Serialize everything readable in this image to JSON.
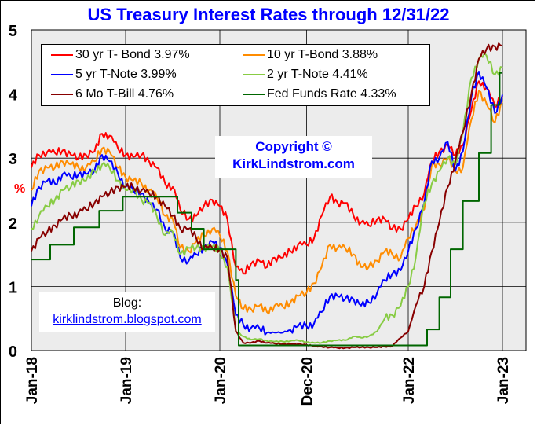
{
  "chart_data": {
    "type": "line",
    "title": "US Treasury Interest Rates through 12/31/22",
    "ylabel": "%",
    "xlabel": "",
    "ylim": [
      0,
      5
    ],
    "yticks": [
      "0",
      "1",
      "2",
      "3",
      "4",
      "5"
    ],
    "xlim": [
      2018.0,
      2023.25
    ],
    "xticks": [
      {
        "label": "Jan-18",
        "value": 2018.0
      },
      {
        "label": "Jan-19",
        "value": 2019.0
      },
      {
        "label": "Jan-20",
        "value": 2020.0
      },
      {
        "label": "Dec-20",
        "value": 2020.92
      },
      {
        "label": "Jan-22",
        "value": 2022.0
      },
      {
        "label": "Jan-23",
        "value": 2023.0
      }
    ],
    "grid": true,
    "legend_position": "top-left",
    "series": [
      {
        "name": "30 yr T- Bond",
        "last": "3.97%",
        "color": "#ff0000",
        "x": [
          2018.0,
          2018.08,
          2018.17,
          2018.25,
          2018.33,
          2018.42,
          2018.5,
          2018.58,
          2018.67,
          2018.75,
          2018.83,
          2018.92,
          2019.0,
          2019.08,
          2019.17,
          2019.25,
          2019.33,
          2019.42,
          2019.5,
          2019.58,
          2019.67,
          2019.75,
          2019.83,
          2019.92,
          2020.0,
          2020.08,
          2020.17,
          2020.25,
          2020.33,
          2020.42,
          2020.5,
          2020.58,
          2020.67,
          2020.75,
          2020.83,
          2020.92,
          2021.0,
          2021.08,
          2021.17,
          2021.25,
          2021.33,
          2021.42,
          2021.5,
          2021.58,
          2021.67,
          2021.75,
          2021.83,
          2021.92,
          2022.0,
          2022.08,
          2022.17,
          2022.25,
          2022.33,
          2022.42,
          2022.5,
          2022.58,
          2022.67,
          2022.75,
          2022.83,
          2022.92,
          2023.0
        ],
        "y": [
          2.85,
          3.05,
          3.1,
          3.08,
          3.12,
          3.05,
          3.0,
          3.05,
          3.1,
          3.38,
          3.35,
          3.15,
          3.05,
          3.02,
          3.05,
          2.95,
          2.85,
          2.6,
          2.55,
          2.2,
          2.05,
          2.1,
          2.25,
          2.35,
          2.25,
          2.05,
          1.3,
          1.2,
          1.35,
          1.4,
          1.3,
          1.45,
          1.45,
          1.55,
          1.65,
          1.65,
          1.75,
          2.1,
          2.4,
          2.3,
          2.3,
          2.1,
          2.0,
          1.95,
          2.05,
          2.05,
          1.9,
          1.9,
          2.05,
          2.25,
          2.45,
          2.95,
          3.1,
          3.2,
          3.05,
          3.2,
          3.75,
          4.2,
          4.1,
          3.8,
          3.97
        ]
      },
      {
        "name": "10 yr T-Bond",
        "last": "3.88%",
        "color": "#ff8c00",
        "x": [
          2018.0,
          2018.08,
          2018.17,
          2018.25,
          2018.33,
          2018.42,
          2018.5,
          2018.58,
          2018.67,
          2018.75,
          2018.83,
          2018.92,
          2019.0,
          2019.08,
          2019.17,
          2019.25,
          2019.33,
          2019.42,
          2019.5,
          2019.58,
          2019.67,
          2019.75,
          2019.83,
          2019.92,
          2020.0,
          2020.08,
          2020.17,
          2020.25,
          2020.33,
          2020.42,
          2020.5,
          2020.58,
          2020.67,
          2020.75,
          2020.83,
          2020.92,
          2021.0,
          2021.08,
          2021.17,
          2021.25,
          2021.33,
          2021.42,
          2021.5,
          2021.58,
          2021.67,
          2021.75,
          2021.83,
          2021.92,
          2022.0,
          2022.08,
          2022.17,
          2022.25,
          2022.33,
          2022.42,
          2022.5,
          2022.58,
          2022.67,
          2022.75,
          2022.83,
          2022.92,
          2023.0
        ],
        "y": [
          2.5,
          2.8,
          2.85,
          2.85,
          2.95,
          2.9,
          2.85,
          2.85,
          2.95,
          3.15,
          3.1,
          2.85,
          2.7,
          2.65,
          2.6,
          2.5,
          2.4,
          2.1,
          2.05,
          1.6,
          1.55,
          1.7,
          1.8,
          1.9,
          1.8,
          1.55,
          0.85,
          0.65,
          0.65,
          0.7,
          0.6,
          0.7,
          0.68,
          0.75,
          0.85,
          0.9,
          1.05,
          1.3,
          1.65,
          1.6,
          1.6,
          1.5,
          1.3,
          1.3,
          1.4,
          1.55,
          1.5,
          1.45,
          1.75,
          1.95,
          2.2,
          2.9,
          2.9,
          3.0,
          2.8,
          2.85,
          3.6,
          4.05,
          3.85,
          3.55,
          3.88
        ]
      },
      {
        "name": "5 yr T-Note",
        "last": "3.99%",
        "color": "#0000ff",
        "x": [
          2018.0,
          2018.08,
          2018.17,
          2018.25,
          2018.33,
          2018.42,
          2018.5,
          2018.58,
          2018.67,
          2018.75,
          2018.83,
          2018.92,
          2019.0,
          2019.08,
          2019.17,
          2019.25,
          2019.33,
          2019.42,
          2019.5,
          2019.58,
          2019.67,
          2019.75,
          2019.83,
          2019.92,
          2020.0,
          2020.08,
          2020.17,
          2020.25,
          2020.33,
          2020.42,
          2020.5,
          2020.58,
          2020.67,
          2020.75,
          2020.83,
          2020.92,
          2021.0,
          2021.08,
          2021.17,
          2021.25,
          2021.33,
          2021.42,
          2021.5,
          2021.58,
          2021.67,
          2021.75,
          2021.83,
          2021.92,
          2022.0,
          2022.08,
          2022.17,
          2022.25,
          2022.33,
          2022.42,
          2022.5,
          2022.58,
          2022.67,
          2022.75,
          2022.83,
          2022.92,
          2023.0
        ],
        "y": [
          2.25,
          2.55,
          2.65,
          2.6,
          2.75,
          2.7,
          2.75,
          2.75,
          2.8,
          3.05,
          2.95,
          2.75,
          2.55,
          2.5,
          2.45,
          2.3,
          2.2,
          1.9,
          1.85,
          1.45,
          1.4,
          1.5,
          1.6,
          1.7,
          1.6,
          1.35,
          0.55,
          0.4,
          0.35,
          0.35,
          0.28,
          0.28,
          0.28,
          0.32,
          0.38,
          0.38,
          0.42,
          0.6,
          0.85,
          0.85,
          0.8,
          0.8,
          0.7,
          0.75,
          0.9,
          1.1,
          1.2,
          1.25,
          1.55,
          1.9,
          2.3,
          2.95,
          3.0,
          3.25,
          2.8,
          3.1,
          3.95,
          4.35,
          4.1,
          3.7,
          3.99
        ]
      },
      {
        "name": "2 yr T-Note",
        "last": "4.41%",
        "color": "#88cc44",
        "x": [
          2018.0,
          2018.08,
          2018.17,
          2018.25,
          2018.33,
          2018.42,
          2018.5,
          2018.58,
          2018.67,
          2018.75,
          2018.83,
          2018.92,
          2019.0,
          2019.08,
          2019.17,
          2019.25,
          2019.33,
          2019.42,
          2019.5,
          2019.58,
          2019.67,
          2019.75,
          2019.83,
          2019.92,
          2020.0,
          2020.08,
          2020.17,
          2020.25,
          2020.33,
          2020.42,
          2020.5,
          2020.58,
          2020.67,
          2020.75,
          2020.83,
          2020.92,
          2021.0,
          2021.08,
          2021.17,
          2021.25,
          2021.33,
          2021.42,
          2021.5,
          2021.58,
          2021.67,
          2021.75,
          2021.83,
          2021.92,
          2022.0,
          2022.08,
          2022.17,
          2022.25,
          2022.33,
          2022.42,
          2022.5,
          2022.58,
          2022.67,
          2022.75,
          2022.83,
          2022.92,
          2023.0
        ],
        "y": [
          1.9,
          2.1,
          2.25,
          2.35,
          2.5,
          2.55,
          2.65,
          2.65,
          2.8,
          2.9,
          2.85,
          2.65,
          2.5,
          2.5,
          2.35,
          2.3,
          2.1,
          1.8,
          1.85,
          1.5,
          1.6,
          1.6,
          1.6,
          1.62,
          1.55,
          1.3,
          0.3,
          0.22,
          0.17,
          0.18,
          0.15,
          0.14,
          0.14,
          0.15,
          0.16,
          0.13,
          0.12,
          0.12,
          0.15,
          0.16,
          0.16,
          0.22,
          0.2,
          0.22,
          0.3,
          0.5,
          0.55,
          0.7,
          1.0,
          1.45,
          2.3,
          2.6,
          2.8,
          3.0,
          2.9,
          3.4,
          4.25,
          4.55,
          4.6,
          4.3,
          4.41
        ]
      },
      {
        "name": "6 Mo T-Bill",
        "last": "4.76%",
        "color": "#880000",
        "x": [
          2018.0,
          2018.08,
          2018.17,
          2018.25,
          2018.33,
          2018.42,
          2018.5,
          2018.58,
          2018.67,
          2018.75,
          2018.83,
          2018.92,
          2019.0,
          2019.08,
          2019.17,
          2019.25,
          2019.33,
          2019.42,
          2019.5,
          2019.58,
          2019.67,
          2019.75,
          2019.83,
          2019.92,
          2020.0,
          2020.08,
          2020.17,
          2020.25,
          2020.33,
          2020.42,
          2020.5,
          2020.58,
          2020.67,
          2020.75,
          2020.83,
          2020.92,
          2021.0,
          2021.08,
          2021.17,
          2021.25,
          2021.33,
          2021.42,
          2021.5,
          2021.58,
          2021.67,
          2021.75,
          2021.83,
          2021.92,
          2022.0,
          2022.08,
          2022.17,
          2022.25,
          2022.33,
          2022.42,
          2022.5,
          2022.58,
          2022.67,
          2022.75,
          2022.83,
          2022.92,
          2023.0
        ],
        "y": [
          1.55,
          1.75,
          1.85,
          1.95,
          2.05,
          2.1,
          2.15,
          2.2,
          2.3,
          2.4,
          2.45,
          2.55,
          2.55,
          2.55,
          2.5,
          2.45,
          2.4,
          2.25,
          2.1,
          1.9,
          1.9,
          1.75,
          1.6,
          1.6,
          1.58,
          1.45,
          0.3,
          0.12,
          0.12,
          0.15,
          0.12,
          0.11,
          0.1,
          0.1,
          0.1,
          0.09,
          0.07,
          0.06,
          0.05,
          0.04,
          0.04,
          0.05,
          0.05,
          0.05,
          0.05,
          0.06,
          0.07,
          0.2,
          0.3,
          0.7,
          1.0,
          1.55,
          2.0,
          2.55,
          2.95,
          3.4,
          4.0,
          4.55,
          4.7,
          4.74,
          4.76
        ]
      },
      {
        "name": "Fed Funds Rate",
        "last": "4.33%",
        "color": "#006600",
        "step": true,
        "x": [
          2018.0,
          2018.2,
          2018.45,
          2018.72,
          2018.97,
          2019.55,
          2019.7,
          2019.83,
          2020.17,
          2020.2,
          2022.2,
          2022.33,
          2022.45,
          2022.58,
          2022.75,
          2022.88,
          2022.97,
          2023.0
        ],
        "y": [
          1.42,
          1.65,
          1.92,
          2.18,
          2.4,
          2.15,
          1.9,
          1.58,
          1.1,
          0.08,
          0.33,
          0.83,
          1.58,
          2.33,
          3.08,
          3.83,
          4.33,
          4.33
        ]
      }
    ]
  },
  "copyright": {
    "line1": "Copyright ©",
    "line2": "KirkLindstrom.com"
  },
  "blog": {
    "label": "Blog:",
    "link": "kirklindstrom.blogspot.com"
  }
}
